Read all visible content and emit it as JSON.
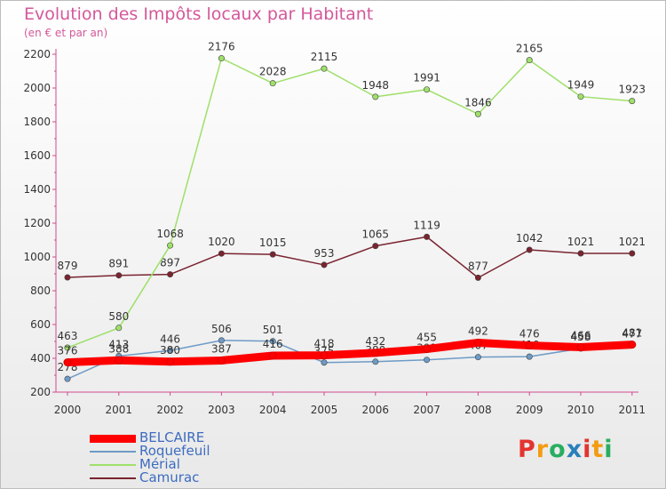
{
  "header": {
    "title": "Evolution des Impôts locaux par Habitant",
    "subtitle": "(en € et par an)"
  },
  "logo": {
    "text": "Proxiti",
    "colors": [
      "#e3342f",
      "#f39c12",
      "#27ae60",
      "#2980b9",
      "#e3342f",
      "#f39c12",
      "#27ae60"
    ]
  },
  "chart_data": {
    "type": "line",
    "x": [
      "2000",
      "2001",
      "2002",
      "2003",
      "2004",
      "2005",
      "2006",
      "2007",
      "2008",
      "2009",
      "2010",
      "2011"
    ],
    "ylim": [
      200,
      2200
    ],
    "yticks": [
      "200",
      "400",
      "600",
      "800",
      "1000",
      "1200",
      "1400",
      "1600",
      "1800",
      "2000",
      "2200"
    ],
    "grid": false,
    "legend_position": "bottom-left",
    "series": [
      {
        "name": "Camurac",
        "color": "#7a2430",
        "values": [
          879,
          891,
          897,
          1020,
          1015,
          953,
          1065,
          1119,
          877,
          1042,
          1021,
          1021
        ],
        "labels": [
          "879",
          "891",
          "897",
          "1020",
          "1015",
          "953",
          "1065",
          "1119",
          "877",
          "1042",
          "1021",
          "1021"
        ]
      },
      {
        "name": "Mérial",
        "color": "#9ee06a",
        "values": [
          463,
          580,
          1068,
          2176,
          2028,
          2115,
          1948,
          1991,
          1846,
          2165,
          1949,
          1923
        ],
        "labels": [
          "463",
          "580",
          "1068",
          "2176",
          "2028",
          "2115",
          "1948",
          "1991",
          "1846",
          "2165",
          "1949",
          "1923"
        ]
      },
      {
        "name": "Roquefeuil",
        "color": "#6e9bc6",
        "values": [
          278,
          413,
          446,
          506,
          501,
          375,
          380,
          391,
          407,
          410,
          458,
          477
        ],
        "labels": [
          "278",
          "413",
          "446",
          "506",
          "501",
          "375",
          "380",
          "391",
          "407",
          "410",
          "458",
          "477"
        ]
      },
      {
        "name": "BELCAIRE",
        "color": "#ff0000",
        "values": [
          376,
          388,
          380,
          387,
          416,
          418,
          432,
          455,
          492,
          476,
          466,
          481
        ],
        "labels": [
          "376",
          "388",
          "380",
          "387",
          "416",
          "418",
          "432",
          "455",
          "492",
          "476",
          "466",
          "481"
        ]
      }
    ]
  }
}
